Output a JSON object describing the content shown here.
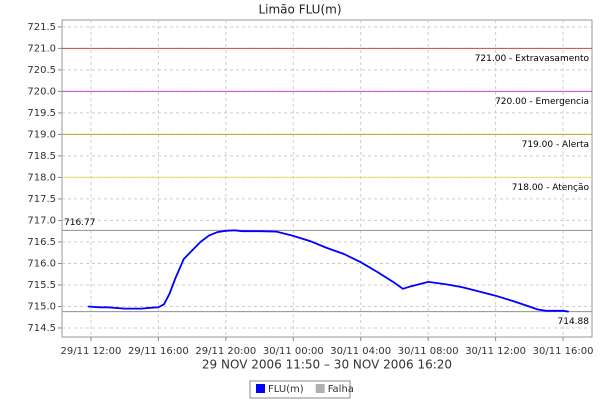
{
  "chart_data": {
    "type": "line",
    "title": "Limão FLU(m)",
    "subtitle": "29 NOV 2006 11:50 – 30 NOV 2006 16:20",
    "x": [
      "2006-11-29 11:50",
      "2006-11-29 12:30",
      "2006-11-29 13:00",
      "2006-11-29 14:00",
      "2006-11-29 15:00",
      "2006-11-29 15:30",
      "2006-11-29 16:00",
      "2006-11-29 16:20",
      "2006-11-29 16:40",
      "2006-11-29 17:00",
      "2006-11-29 17:30",
      "2006-11-29 18:00",
      "2006-11-29 18:30",
      "2006-11-29 19:00",
      "2006-11-29 19:30",
      "2006-11-29 20:00",
      "2006-11-29 20:30",
      "2006-11-29 21:00",
      "2006-11-29 22:00",
      "2006-11-29 23:00",
      "2006-11-30 00:00",
      "2006-11-30 01:00",
      "2006-11-30 02:00",
      "2006-11-30 03:00",
      "2006-11-30 04:00",
      "2006-11-30 05:00",
      "2006-11-30 06:00",
      "2006-11-30 06:30",
      "2006-11-30 07:00",
      "2006-11-30 08:00",
      "2006-11-30 09:00",
      "2006-11-30 10:00",
      "2006-11-30 11:00",
      "2006-11-30 12:00",
      "2006-11-30 13:00",
      "2006-11-30 14:00",
      "2006-11-30 14:30",
      "2006-11-30 15:00",
      "2006-11-30 16:00",
      "2006-11-30 16:20"
    ],
    "series": [
      {
        "name": "FLU(m)",
        "color": "#0000ff",
        "values": [
          715.0,
          714.98,
          714.98,
          714.95,
          714.95,
          714.97,
          714.98,
          715.05,
          715.3,
          715.65,
          716.1,
          716.3,
          716.5,
          716.65,
          716.73,
          716.76,
          716.77,
          716.75,
          716.75,
          716.74,
          716.64,
          716.52,
          716.36,
          716.22,
          716.03,
          715.8,
          715.55,
          715.41,
          715.47,
          715.57,
          715.52,
          715.45,
          715.35,
          715.25,
          715.13,
          715.0,
          714.93,
          714.9,
          714.9,
          714.88
        ]
      },
      {
        "name": "Falha",
        "color": "#b0b0b0",
        "values": [
          null,
          null,
          null,
          null,
          null,
          null,
          null,
          null,
          null,
          null,
          null,
          null,
          null,
          null,
          null,
          null,
          null,
          null,
          null,
          null,
          null,
          null,
          null,
          null,
          null,
          null,
          null,
          null,
          null,
          null,
          null,
          null,
          null,
          null,
          null,
          null,
          null,
          null,
          null,
          null
        ]
      }
    ],
    "reference_lines": [
      {
        "value": 721.0,
        "label": "721.00 - Extravasamento",
        "color": "#e04040",
        "align": "right"
      },
      {
        "value": 720.0,
        "label": "720.00 - Emergencia",
        "color": "#cc44cc",
        "align": "right"
      },
      {
        "value": 719.0,
        "label": "719.00 - Alerta",
        "color": "#c8a020",
        "align": "right"
      },
      {
        "value": 718.0,
        "label": "718.00 - Atenção",
        "color": "#e8e060",
        "align": "right"
      },
      {
        "value": 716.77,
        "label": "716.77",
        "color": "#909090",
        "align": "left"
      },
      {
        "value": 714.88,
        "label": "714.88",
        "color": "#909090",
        "align": "right"
      }
    ],
    "xlim": [
      "2006-11-29 10:17",
      "2006-11-30 17:43"
    ],
    "xticks": [
      {
        "value": "2006-11-29 12:00",
        "label": "29/11 12:00"
      },
      {
        "value": "2006-11-29 16:00",
        "label": "29/11 16:00"
      },
      {
        "value": "2006-11-29 20:00",
        "label": "29/11 20:00"
      },
      {
        "value": "2006-11-30 00:00",
        "label": "30/11 00:00"
      },
      {
        "value": "2006-11-30 04:00",
        "label": "30/11 04:00"
      },
      {
        "value": "2006-11-30 08:00",
        "label": "30/11 08:00"
      },
      {
        "value": "2006-11-30 12:00",
        "label": "30/11 12:00"
      },
      {
        "value": "2006-11-30 16:00",
        "label": "30/11 16:00"
      }
    ],
    "ylim": [
      714.29,
      721.66
    ],
    "yticks": [
      714.5,
      {
        "value": 715,
        "label": "715.0"
      },
      715.5,
      {
        "value": 716,
        "label": "716.0"
      },
      716.5,
      {
        "value": 717,
        "label": "717.0"
      },
      717.5,
      {
        "value": 718,
        "label": "718.0"
      },
      718.5,
      {
        "value": 719,
        "label": "719.0"
      },
      719.5,
      {
        "value": 720,
        "label": "720.0"
      },
      720.5,
      {
        "value": 721,
        "label": "721.0"
      },
      721.5
    ],
    "grid": true
  }
}
